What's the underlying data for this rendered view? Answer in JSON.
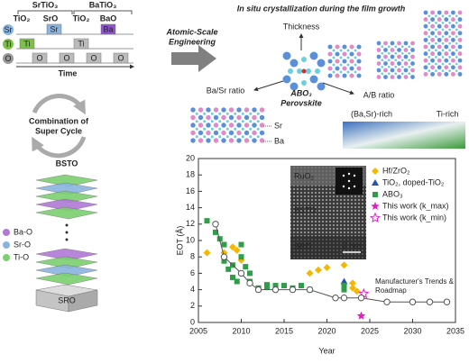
{
  "diagram": {
    "timing": {
      "groups": [
        "SrTiO₃",
        "BaTiO₃"
      ],
      "steps": [
        "TiO₂",
        "SrO",
        "TiO₂",
        "BaO"
      ],
      "rows": [
        "Sr",
        "Ti",
        "O"
      ],
      "pulses": [
        "Ti",
        "Sr",
        "Ti",
        "Ba",
        "O",
        "O",
        "O",
        "O"
      ],
      "time": "Time"
    },
    "cycle": [
      "Combination of",
      "Super Cycle"
    ],
    "stack": {
      "title": "BSTO",
      "base": "SRO",
      "layers": [
        "Ba-O",
        "Sr-O",
        "Ti-O"
      ]
    },
    "arrow_label": [
      "Atomic-Scale",
      "Engineering"
    ],
    "crystal": {
      "title": "In situ crystallization during the film growth",
      "thickness": "Thickness",
      "ba_sr": "Ba/Sr ratio",
      "ab": "A/B ratio",
      "formula": "ABO₃",
      "name": "Perovskite",
      "sites": [
        "Sr",
        "Ba"
      ],
      "rich": [
        "(Ba,Sr)-rich",
        "Ti-rich"
      ]
    }
  },
  "chart_data": {
    "type": "scatter",
    "xlabel": "Year",
    "ylabel": "EOT (Å)",
    "xlim": [
      2005,
      2035
    ],
    "xticks": [
      2005,
      2010,
      2015,
      2020,
      2025,
      2030,
      2035
    ],
    "ylim": [
      0,
      20
    ],
    "yticks": [
      0,
      2,
      4,
      6,
      8,
      10,
      12,
      14,
      16,
      18,
      20
    ],
    "series": [
      {
        "name": "Hf/ZrO₂",
        "color": "#f5b800",
        "marker": "diamond",
        "x": [
          2006,
          2008,
          2009,
          2009.5,
          2010,
          2018,
          2019,
          2020,
          2022,
          2023,
          2023,
          2023.5
        ],
        "values": [
          8.5,
          8.5,
          9.2,
          8.8,
          7.6,
          6.0,
          6.4,
          6.7,
          7.0,
          4.8,
          4.2,
          3.8
        ]
      },
      {
        "name": "TiO₂, doped-TiO₂",
        "color": "#2050c0",
        "marker": "triangle",
        "x": [
          2022
        ],
        "values": [
          5.0
        ]
      },
      {
        "name": "ABO₃",
        "color": "#2e9e48",
        "marker": "square",
        "x": [
          2006,
          2007,
          2007.5,
          2008,
          2008,
          2008.5,
          2009,
          2009,
          2009.5,
          2010,
          2010,
          2010.5,
          2011,
          2011,
          2012,
          2013,
          2013,
          2014,
          2015,
          2016,
          2017,
          2018,
          2022,
          2022
        ],
        "values": [
          12.4,
          11,
          10.2,
          9.5,
          7.5,
          6.5,
          5.5,
          7,
          5,
          9.5,
          8,
          6.8,
          6,
          5,
          4.2,
          4.6,
          4.3,
          4.5,
          4.5,
          4.2,
          4.5,
          4,
          4.5,
          4
        ]
      },
      {
        "name": "This work (k_max)",
        "color": "#e020c0",
        "marker": "star",
        "x": [
          2024
        ],
        "values": [
          0.8
        ]
      },
      {
        "name": "This work (k_min)",
        "color": "#e020c0",
        "marker": "open-star",
        "x": [
          2024.3
        ],
        "values": [
          3.5
        ]
      },
      {
        "name": "Manufacturer's Trends & Roadmap",
        "color": "#555555",
        "marker": "circle",
        "line": true,
        "x": [
          2007,
          2008,
          2010,
          2011,
          2012,
          2014,
          2016,
          2018,
          2021,
          2022,
          2024,
          2027,
          2030,
          2032,
          2034
        ],
        "values": [
          12,
          8,
          6,
          4.8,
          4,
          4,
          4,
          4,
          3,
          3,
          3,
          2.5,
          2.5,
          2.5,
          2.5
        ]
      }
    ],
    "inset": {
      "labels": [
        "RuO₂",
        "BSTO",
        "SRO"
      ],
      "scale": "2 nm"
    }
  }
}
